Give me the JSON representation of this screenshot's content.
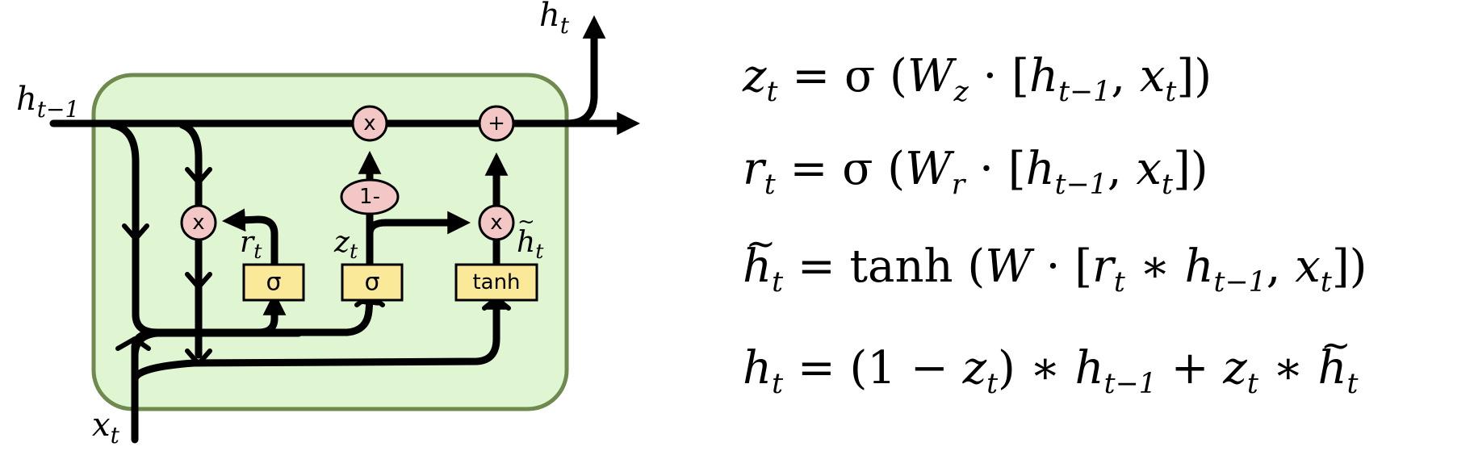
{
  "diagram": {
    "title": "",
    "labels": {
      "h_prev": {
        "base": "h",
        "sub": "t−1"
      },
      "h_out": {
        "base": "h",
        "sub": "t"
      },
      "x_in": {
        "base": "x",
        "sub": "t"
      },
      "r_gate": {
        "base": "r",
        "sub": "t"
      },
      "z_gate": {
        "base": "z",
        "sub": "t"
      },
      "h_cand": {
        "base": "h",
        "sub": "t",
        "accent": "~"
      }
    },
    "operations": {
      "mult_reset": "x",
      "mult_keep": "x",
      "mult_update": "x",
      "add": "+",
      "one_minus": "1-"
    },
    "layers": {
      "reset_sigma": "σ",
      "update_sigma": "σ",
      "candidate_tanh": "tanh"
    },
    "colors": {
      "cell_fill": "#e0f5d2",
      "cell_border": "#6f8a4e",
      "op_fill": "#f4c7c7",
      "layer_fill": "#fbe99a"
    }
  },
  "equations": {
    "eq1": {
      "lhs": "z",
      "lhs_sub": "t",
      "eq": " = σ (",
      "W": "W",
      "W_sub": "z",
      "dot": " · [",
      "h": "h",
      "h_sub": "t−1",
      "comma": ", ",
      "x": "x",
      "x_sub": "t",
      "close": "])"
    },
    "eq2": {
      "lhs": "r",
      "lhs_sub": "t",
      "eq": " = σ (",
      "W": "W",
      "W_sub": "r",
      "dot": " · [",
      "h": "h",
      "h_sub": "t−1",
      "comma": ", ",
      "x": "x",
      "x_sub": "t",
      "close": "])"
    },
    "eq3": {
      "lhs": "h",
      "lhs_sub": "t",
      "eq": " = tanh (",
      "W": "W",
      "dot": " · [",
      "r": "r",
      "r_sub": "t",
      "star": " ∗ ",
      "h": "h",
      "h_sub": "t−1",
      "comma": ", ",
      "x": "x",
      "x_sub": "t",
      "close": "])"
    },
    "eq4": {
      "lhs": "h",
      "lhs_sub": "t",
      "eq": " = (1 − ",
      "z": "z",
      "z_sub": "t",
      "close": ") ∗ ",
      "h": "h",
      "h_sub": "t−1",
      "plus": " + ",
      "z2": "z",
      "z2_sub": "t",
      "star": " ∗ ",
      "h2": "h",
      "h2_sub": "t"
    }
  }
}
